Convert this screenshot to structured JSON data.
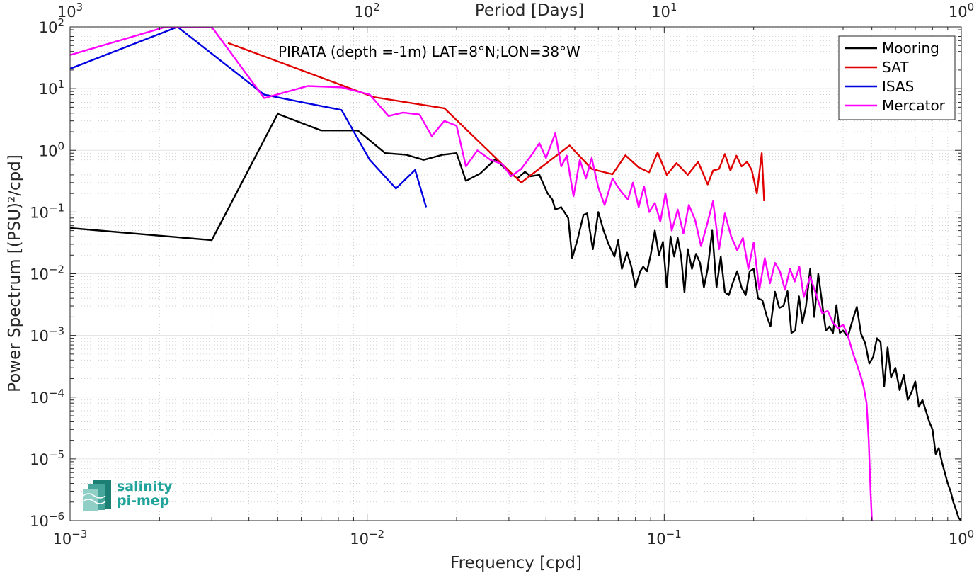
{
  "chart_data": {
    "type": "line",
    "title": "",
    "annotation": "PIRATA (depth =-1m) LAT=8°N;LON=38°W",
    "xlabel": "Frequency [cpd]",
    "ylabel": "Power Spectrum [(PSU)²/cpd]",
    "top_xlabel": "Period [Days]",
    "x_scale": "log",
    "y_scale": "log",
    "xlim": [
      0.001,
      1
    ],
    "ylim": [
      1e-06,
      100
    ],
    "grid": true,
    "legend_position": "top-right",
    "x_ticks": [
      0.001,
      0.01,
      0.1,
      1
    ],
    "y_ticks": [
      1e-06,
      1e-05,
      0.0001,
      0.001,
      0.01,
      0.1,
      1,
      10,
      100
    ],
    "top_ticks": [
      1000,
      100,
      10,
      1
    ],
    "series": [
      {
        "name": "Mooring",
        "color": "#000000",
        "x": [
          0.001,
          0.003,
          0.005,
          0.007,
          0.0093,
          0.0115,
          0.0135,
          0.0155,
          0.018,
          0.02,
          0.0215,
          0.024,
          0.027,
          0.0295,
          0.032,
          0.034,
          0.0355,
          0.038,
          0.0405,
          0.042,
          0.043,
          0.045,
          0.0475,
          0.049,
          0.051,
          0.0535,
          0.055,
          0.0575,
          0.06,
          0.0625,
          0.065,
          0.068,
          0.07,
          0.072,
          0.075,
          0.0775,
          0.08,
          0.083,
          0.085,
          0.0875,
          0.09,
          0.093,
          0.096,
          0.099,
          0.102,
          0.105,
          0.108,
          0.111,
          0.114,
          0.117,
          0.12,
          0.124,
          0.128,
          0.132,
          0.136,
          0.14,
          0.145,
          0.15,
          0.155,
          0.16,
          0.165,
          0.17,
          0.176,
          0.182,
          0.188,
          0.194,
          0.2,
          0.207,
          0.214,
          0.221,
          0.228,
          0.236,
          0.244,
          0.252,
          0.26,
          0.268,
          0.276,
          0.284,
          0.292,
          0.3,
          0.31,
          0.32,
          0.33,
          0.34,
          0.35,
          0.36,
          0.37,
          0.38,
          0.39,
          0.4,
          0.415,
          0.43,
          0.445,
          0.46,
          0.475,
          0.49,
          0.505,
          0.52,
          0.535,
          0.55,
          0.565,
          0.58,
          0.6,
          0.62,
          0.64,
          0.66,
          0.68,
          0.7,
          0.72,
          0.74,
          0.76,
          0.78,
          0.8,
          0.82,
          0.84,
          0.86,
          0.88,
          0.9,
          0.92,
          0.94,
          0.96,
          0.98,
          1.0
        ],
        "y": [
          0.055,
          0.035,
          3.9,
          2.1,
          2.1,
          0.9,
          0.85,
          0.7,
          0.85,
          0.9,
          0.32,
          0.42,
          0.72,
          0.48,
          0.35,
          0.45,
          0.38,
          0.4,
          0.2,
          0.16,
          0.11,
          0.12,
          0.08,
          0.018,
          0.035,
          0.09,
          0.095,
          0.025,
          0.1,
          0.05,
          0.03,
          0.019,
          0.035,
          0.012,
          0.022,
          0.013,
          0.006,
          0.011,
          0.013,
          0.011,
          0.02,
          0.05,
          0.02,
          0.033,
          0.006,
          0.04,
          0.019,
          0.038,
          0.019,
          0.005,
          0.025,
          0.012,
          0.021,
          0.015,
          0.006,
          0.012,
          0.05,
          0.006,
          0.019,
          0.005,
          0.0045,
          0.007,
          0.011,
          0.006,
          0.0045,
          0.011,
          0.012,
          0.004,
          0.0037,
          0.0021,
          0.0014,
          0.0051,
          0.0028,
          0.003,
          0.0052,
          0.0011,
          0.0012,
          0.0043,
          0.0016,
          0.003,
          0.012,
          0.002,
          0.01,
          0.0033,
          0.0012,
          0.0014,
          0.0011,
          0.0031,
          0.0011,
          0.0012,
          0.00095,
          0.00175,
          0.0029,
          0.00105,
          0.00075,
          0.00035,
          0.00045,
          0.0009,
          0.00078,
          0.00015,
          0.00064,
          0.00021,
          0.0003,
          0.00013,
          0.00023,
          9e-05,
          0.00012,
          0.00018,
          7e-05,
          9e-05,
          6e-05,
          4e-05,
          3e-05,
          1.2e-05,
          1.5e-05,
          9e-06,
          6e-06,
          4e-06,
          3e-06,
          2e-06,
          1.5e-06,
          1.1e-06,
          1e-06
        ]
      },
      {
        "name": "SAT",
        "color": "#e00000",
        "x": [
          0.0034,
          0.0105,
          0.0182,
          0.033,
          0.048,
          0.057,
          0.062,
          0.067,
          0.074,
          0.082,
          0.089,
          0.095,
          0.102,
          0.11,
          0.12,
          0.13,
          0.14,
          0.146,
          0.153,
          0.16,
          0.167,
          0.175,
          0.182,
          0.19,
          0.197,
          0.205,
          0.213,
          0.217
        ],
        "y": [
          55,
          7.3,
          4.8,
          0.3,
          1.2,
          0.5,
          0.45,
          0.41,
          0.83,
          0.53,
          0.44,
          0.92,
          0.4,
          0.62,
          0.4,
          0.65,
          0.28,
          0.47,
          0.5,
          0.87,
          0.47,
          0.82,
          0.55,
          0.65,
          0.48,
          0.2,
          0.9,
          0.15
        ]
      },
      {
        "name": "ISAS",
        "color": "#0000e0",
        "x": [
          0.001,
          0.0023,
          0.0045,
          0.0065,
          0.0082,
          0.0102,
          0.0125,
          0.0145,
          0.0158
        ],
        "y": [
          21,
          100,
          8.0,
          5.6,
          4.5,
          0.7,
          0.24,
          0.48,
          0.12
        ]
      },
      {
        "name": "Mercator",
        "color": "#ff00ff",
        "x": [
          0.001,
          0.0021,
          0.003,
          0.0045,
          0.0063,
          0.0082,
          0.0102,
          0.0118,
          0.0132,
          0.015,
          0.0165,
          0.0182,
          0.02,
          0.0215,
          0.0235,
          0.026,
          0.0285,
          0.0305,
          0.033,
          0.0355,
          0.038,
          0.04,
          0.0415,
          0.043,
          0.045,
          0.047,
          0.0495,
          0.052,
          0.0545,
          0.057,
          0.06,
          0.063,
          0.067,
          0.07,
          0.0725,
          0.0755,
          0.0785,
          0.082,
          0.0855,
          0.089,
          0.093,
          0.097,
          0.101,
          0.106,
          0.111,
          0.116,
          0.121,
          0.127,
          0.133,
          0.139,
          0.146,
          0.153,
          0.16,
          0.168,
          0.176,
          0.184,
          0.192,
          0.2,
          0.209,
          0.218,
          0.227,
          0.236,
          0.245,
          0.255,
          0.265,
          0.275,
          0.285,
          0.295,
          0.31,
          0.325,
          0.34,
          0.355,
          0.37,
          0.385,
          0.4,
          0.415,
          0.43,
          0.445,
          0.46,
          0.47,
          0.48,
          0.488,
          0.495,
          0.5
        ],
        "y": [
          35,
          100,
          100,
          7.0,
          11,
          10.5,
          8.0,
          3.6,
          4.1,
          3.8,
          1.7,
          3.0,
          2.5,
          0.55,
          1.0,
          0.7,
          0.6,
          0.38,
          0.5,
          0.8,
          1.3,
          0.75,
          1.2,
          1.9,
          0.55,
          0.82,
          0.18,
          0.7,
          0.35,
          0.75,
          0.25,
          0.13,
          0.35,
          0.25,
          0.2,
          0.16,
          0.3,
          0.12,
          0.26,
          0.1,
          0.14,
          0.07,
          0.2,
          0.05,
          0.11,
          0.045,
          0.13,
          0.075,
          0.028,
          0.06,
          0.15,
          0.025,
          0.095,
          0.04,
          0.024,
          0.038,
          0.012,
          0.032,
          0.0055,
          0.018,
          0.007,
          0.015,
          0.011,
          0.0055,
          0.012,
          0.0075,
          0.013,
          0.0042,
          0.009,
          0.0045,
          0.0023,
          0.0025,
          0.0016,
          0.0013,
          0.0015,
          0.001,
          0.00055,
          0.00034,
          0.00021,
          0.00014,
          8e-05,
          2e-05,
          3e-06,
          1e-06
        ]
      }
    ]
  },
  "logo": {
    "line1": "salinity",
    "line2": "pi-mep"
  }
}
